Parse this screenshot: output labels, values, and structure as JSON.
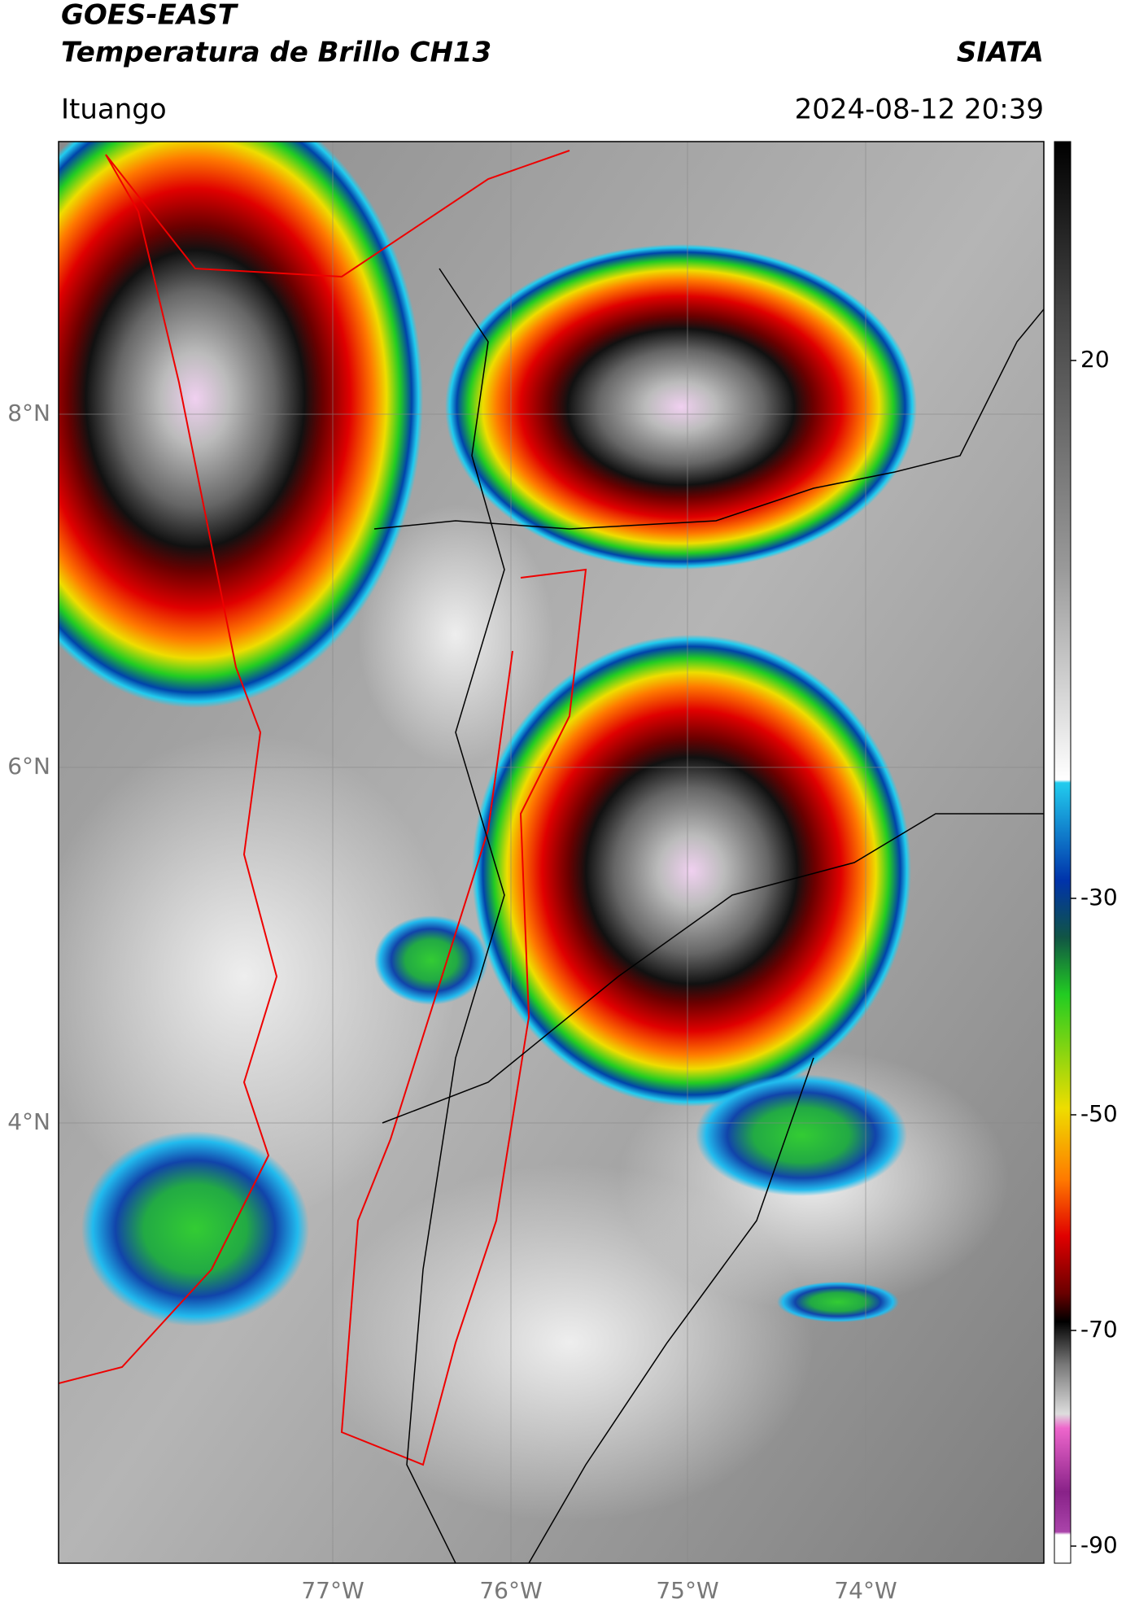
{
  "header": {
    "title": "GOES-EAST",
    "subtitle": "Temperatura de Brillo CH13",
    "source": "SIATA",
    "location": "Ituango",
    "timestamp": "2024-08-12 20:39"
  },
  "map": {
    "lat_labels": [
      "8°N",
      "6°N",
      "4°N"
    ],
    "lon_labels": [
      "77°W",
      "76°W",
      "75°W",
      "74°W"
    ]
  },
  "colorbar": {
    "tick_labels": [
      "20",
      "-30",
      "-50",
      "-70",
      "-90"
    ]
  }
}
